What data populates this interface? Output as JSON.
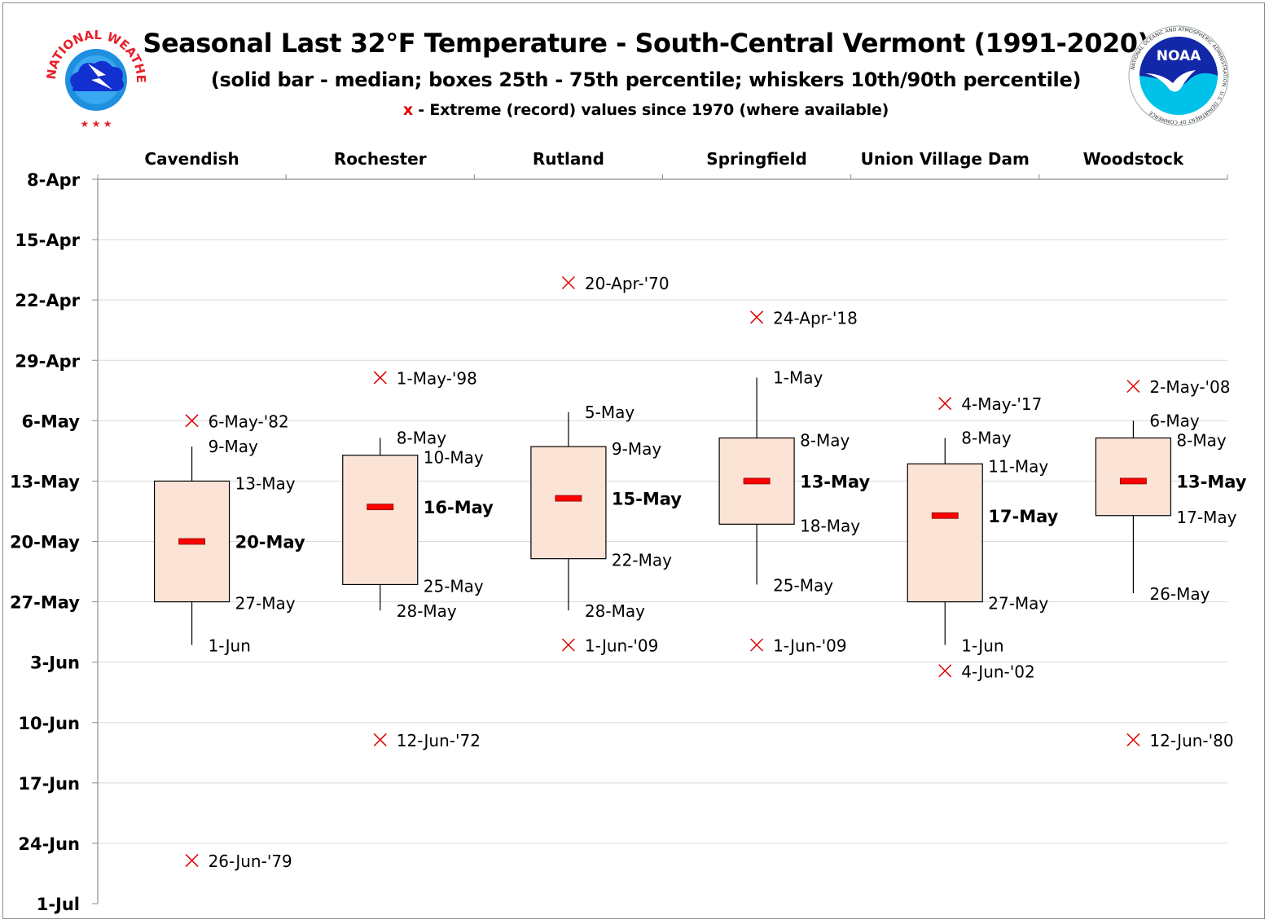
{
  "title": "Seasonal Last 32°F Temperature - South-Central Vermont (1991-2020)",
  "subtitle": "(solid bar - median; boxes 25th - 75th percentile; whiskers 10th/90th percentile)",
  "note_marker": "x",
  "note_text": " - Extreme (record) values since 1970 (where available)",
  "logos": {
    "left_text": "NATIONAL WEATHER SERVICE",
    "right_center": "NOAA",
    "right_ring": "NATIONAL OCEANIC AND ATMOSPHERIC ADMINISTRATION · U.S. DEPARTMENT OF COMMERCE"
  },
  "colors": {
    "box_fill": "#fbe4d6",
    "box_stroke": "#000000",
    "median": "#ff0000",
    "extreme": "#e00000",
    "grid": "#d9d9d9",
    "axis": "#8c8c8c"
  },
  "chart_data": {
    "type": "boxplot",
    "y_axis": {
      "reversed": true,
      "ticks": [
        "8-Apr",
        "15-Apr",
        "22-Apr",
        "29-Apr",
        "6-May",
        "13-May",
        "20-May",
        "27-May",
        "3-Jun",
        "10-Jun",
        "17-Jun",
        "24-Jun",
        "1-Jul"
      ],
      "range": [
        "8-Apr",
        "1-Jul"
      ],
      "grid": true
    },
    "categories_position": "top",
    "stations": [
      {
        "name": "Cavendish",
        "p10": "9-May",
        "p25": "13-May",
        "median": "20-May",
        "p75": "27-May",
        "p90": "1-Jun",
        "extremes": [
          {
            "date": "6-May",
            "label": "6-May-'82"
          },
          {
            "date": "26-Jun",
            "label": "26-Jun-'79"
          }
        ]
      },
      {
        "name": "Rochester",
        "p10": "8-May",
        "p25": "10-May",
        "median": "16-May",
        "p75": "25-May",
        "p90": "28-May",
        "extremes": [
          {
            "date": "1-May",
            "label": "1-May-'98"
          },
          {
            "date": "12-Jun",
            "label": "12-Jun-'72"
          }
        ]
      },
      {
        "name": "Rutland",
        "p10": "5-May",
        "p25": "9-May",
        "median": "15-May",
        "p75": "22-May",
        "p90": "28-May",
        "extremes": [
          {
            "date": "20-Apr",
            "label": "20-Apr-'70"
          },
          {
            "date": "1-Jun",
            "label": "1-Jun-'09"
          }
        ]
      },
      {
        "name": "Springfield",
        "p10": "1-May",
        "p25": "8-May",
        "median": "13-May",
        "p75": "18-May",
        "p90": "25-May",
        "extremes": [
          {
            "date": "24-Apr",
            "label": "24-Apr-'18"
          },
          {
            "date": "1-Jun",
            "label": "1-Jun-'09"
          }
        ]
      },
      {
        "name": "Union Village Dam",
        "p10": "8-May",
        "p25": "11-May",
        "median": "17-May",
        "p75": "27-May",
        "p90": "1-Jun",
        "extremes": [
          {
            "date": "4-May",
            "label": "4-May-'17"
          },
          {
            "date": "4-Jun",
            "label": "4-Jun-'02"
          }
        ]
      },
      {
        "name": "Woodstock",
        "p10": "6-May",
        "p25": "8-May",
        "median": "13-May",
        "p75": "17-May",
        "p90": "26-May",
        "extremes": [
          {
            "date": "2-May",
            "label": "2-May-'08"
          },
          {
            "date": "12-Jun",
            "label": "12-Jun-'80"
          }
        ]
      }
    ]
  }
}
